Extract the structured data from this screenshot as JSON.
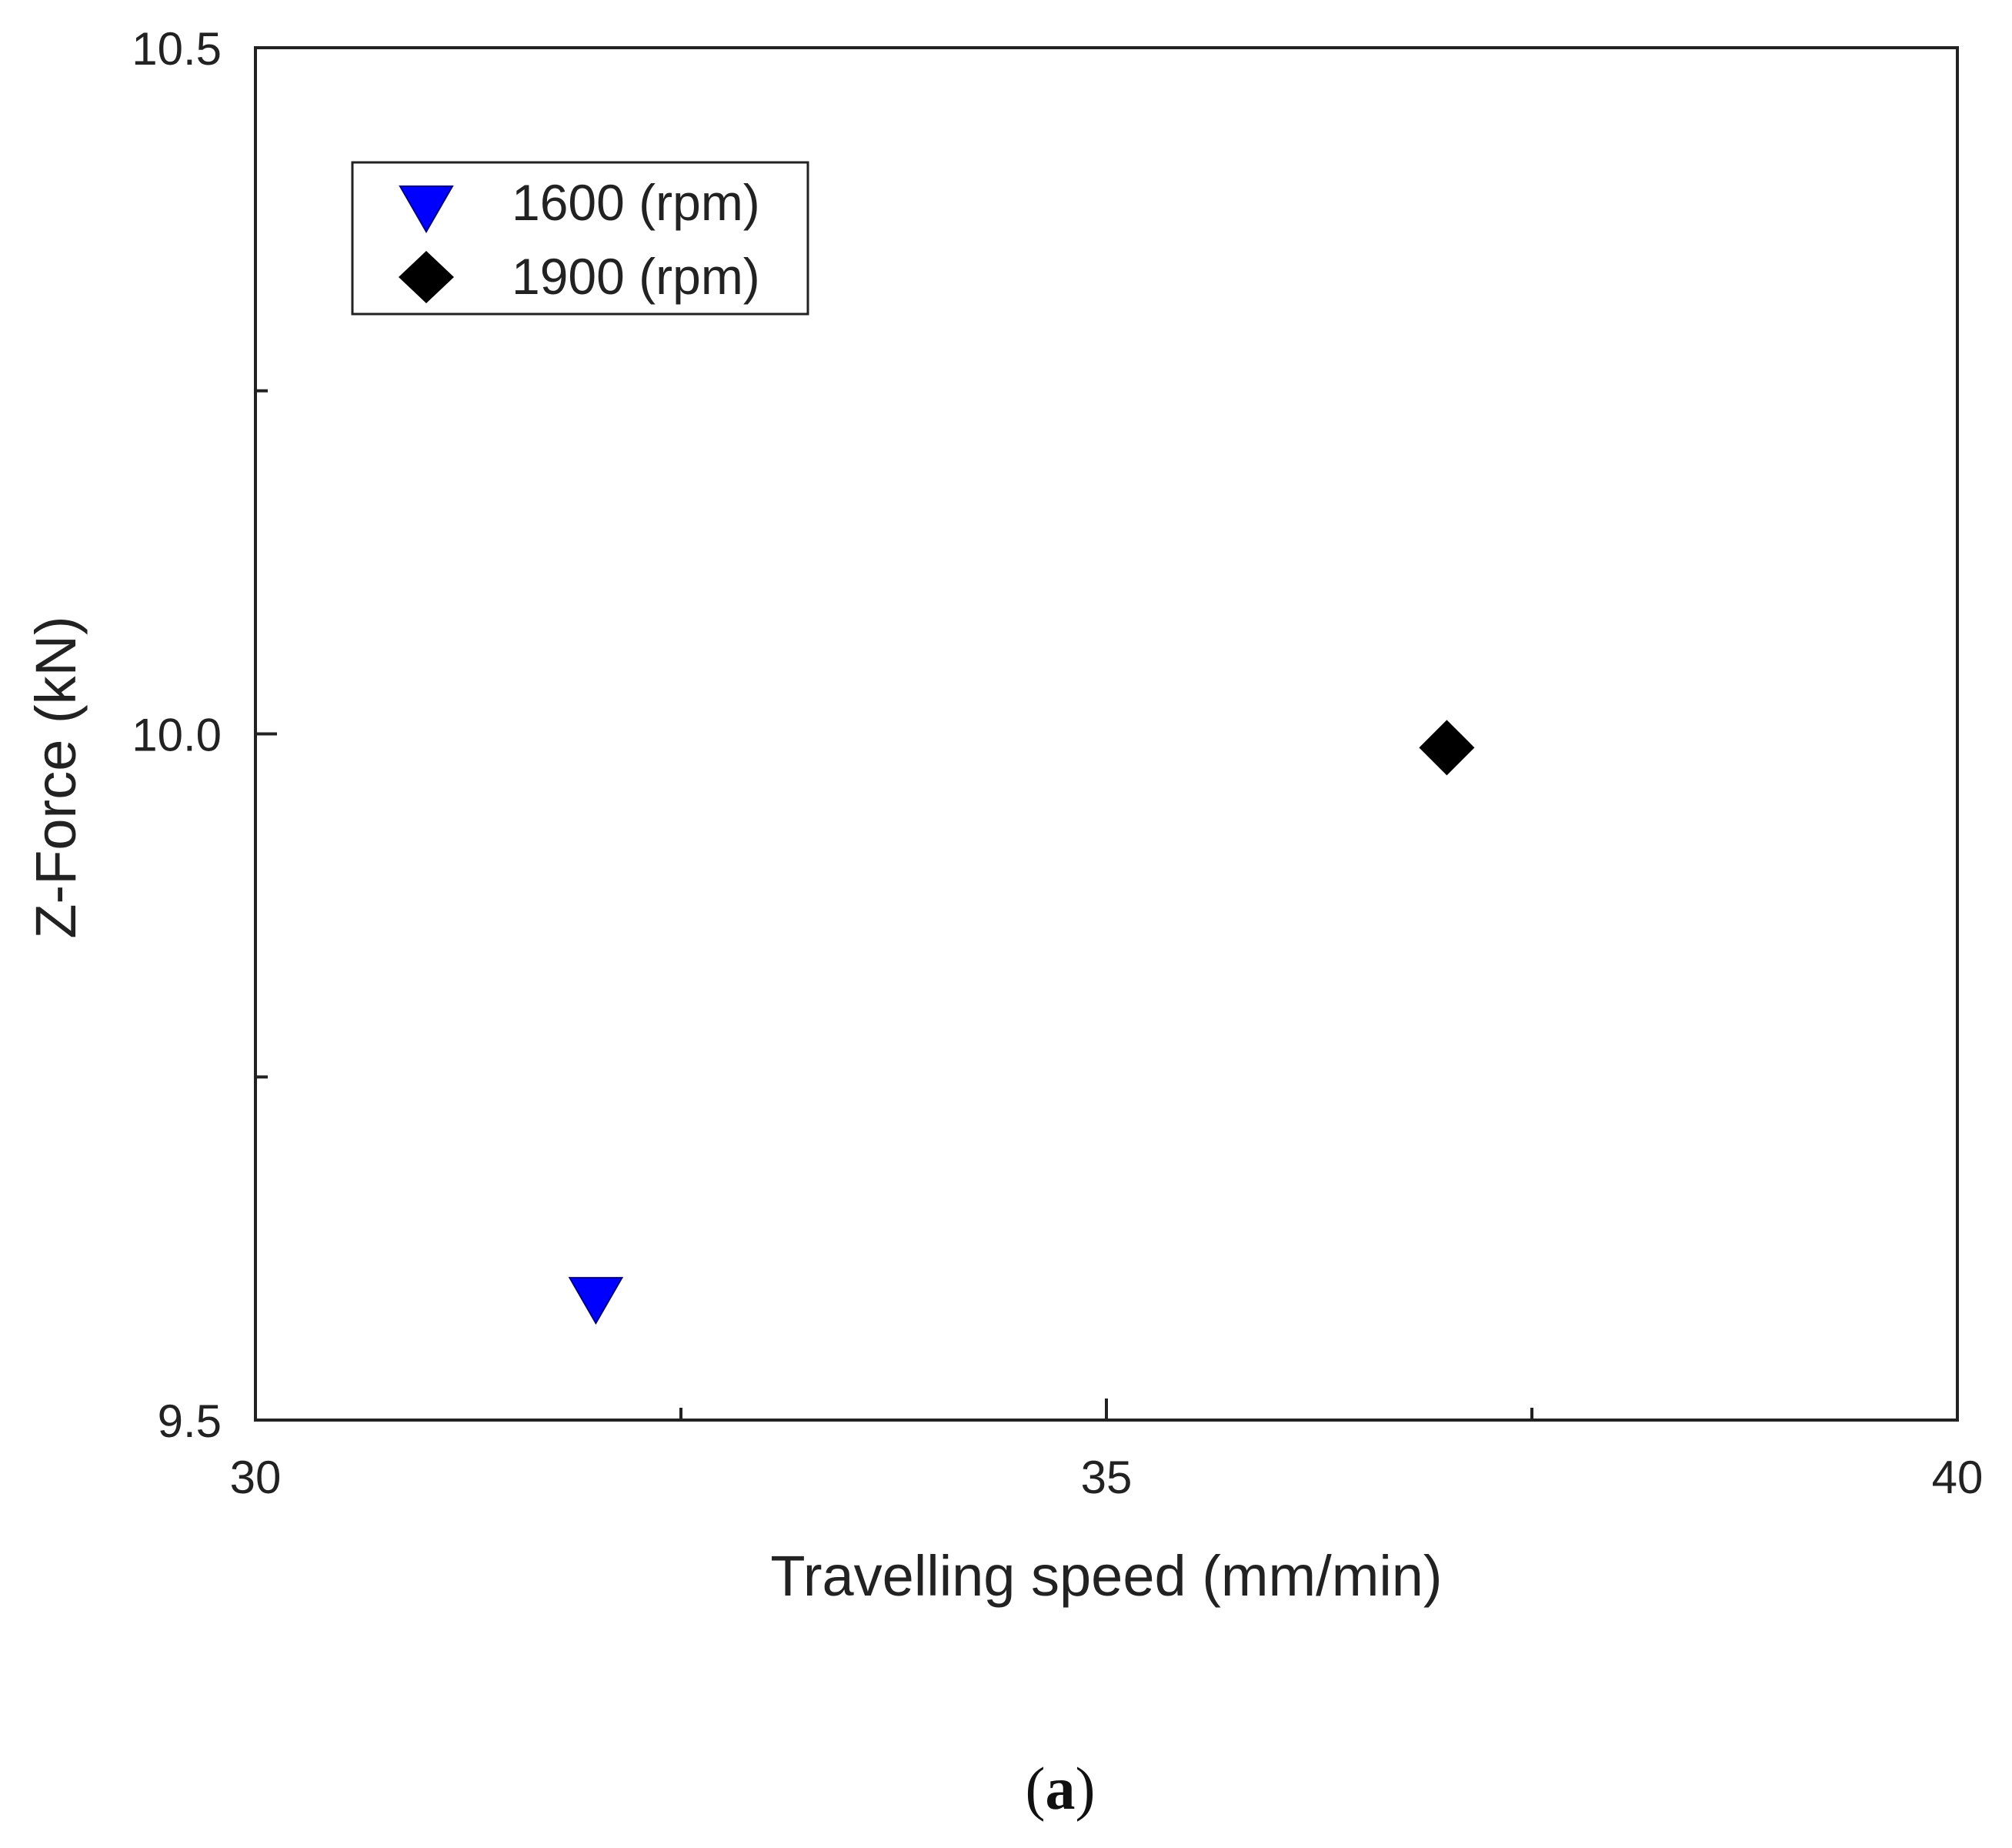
{
  "chart_data": {
    "type": "scatter",
    "xlabel": "Travelling speed (mm/min)",
    "ylabel": "Z-Force (kN)",
    "xlim": [
      30,
      40
    ],
    "ylim": [
      9.5,
      10.5
    ],
    "x_ticks": [
      30,
      35,
      40
    ],
    "x_tick_labels": [
      "30",
      "35",
      "40"
    ],
    "x_minor_ticks": [
      32.5,
      37.5
    ],
    "y_ticks": [
      9.5,
      10.0,
      10.5
    ],
    "y_tick_labels": [
      "9.5",
      "10.0",
      "10.5"
    ],
    "y_minor_ticks": [
      9.75,
      10.25
    ],
    "grid": false,
    "legend_position": "top-left",
    "series": [
      {
        "name": "1600 (rpm)",
        "marker": "triangle-down",
        "color": "#0000ff",
        "points": [
          {
            "x": 32.0,
            "y": 9.588
          }
        ]
      },
      {
        "name": "1900 (rpm)",
        "marker": "diamond",
        "color": "#000000",
        "points": [
          {
            "x": 37.0,
            "y": 9.99
          }
        ]
      }
    ]
  },
  "caption": {
    "prefix": "(",
    "letter": "a",
    "suffix": ")"
  }
}
